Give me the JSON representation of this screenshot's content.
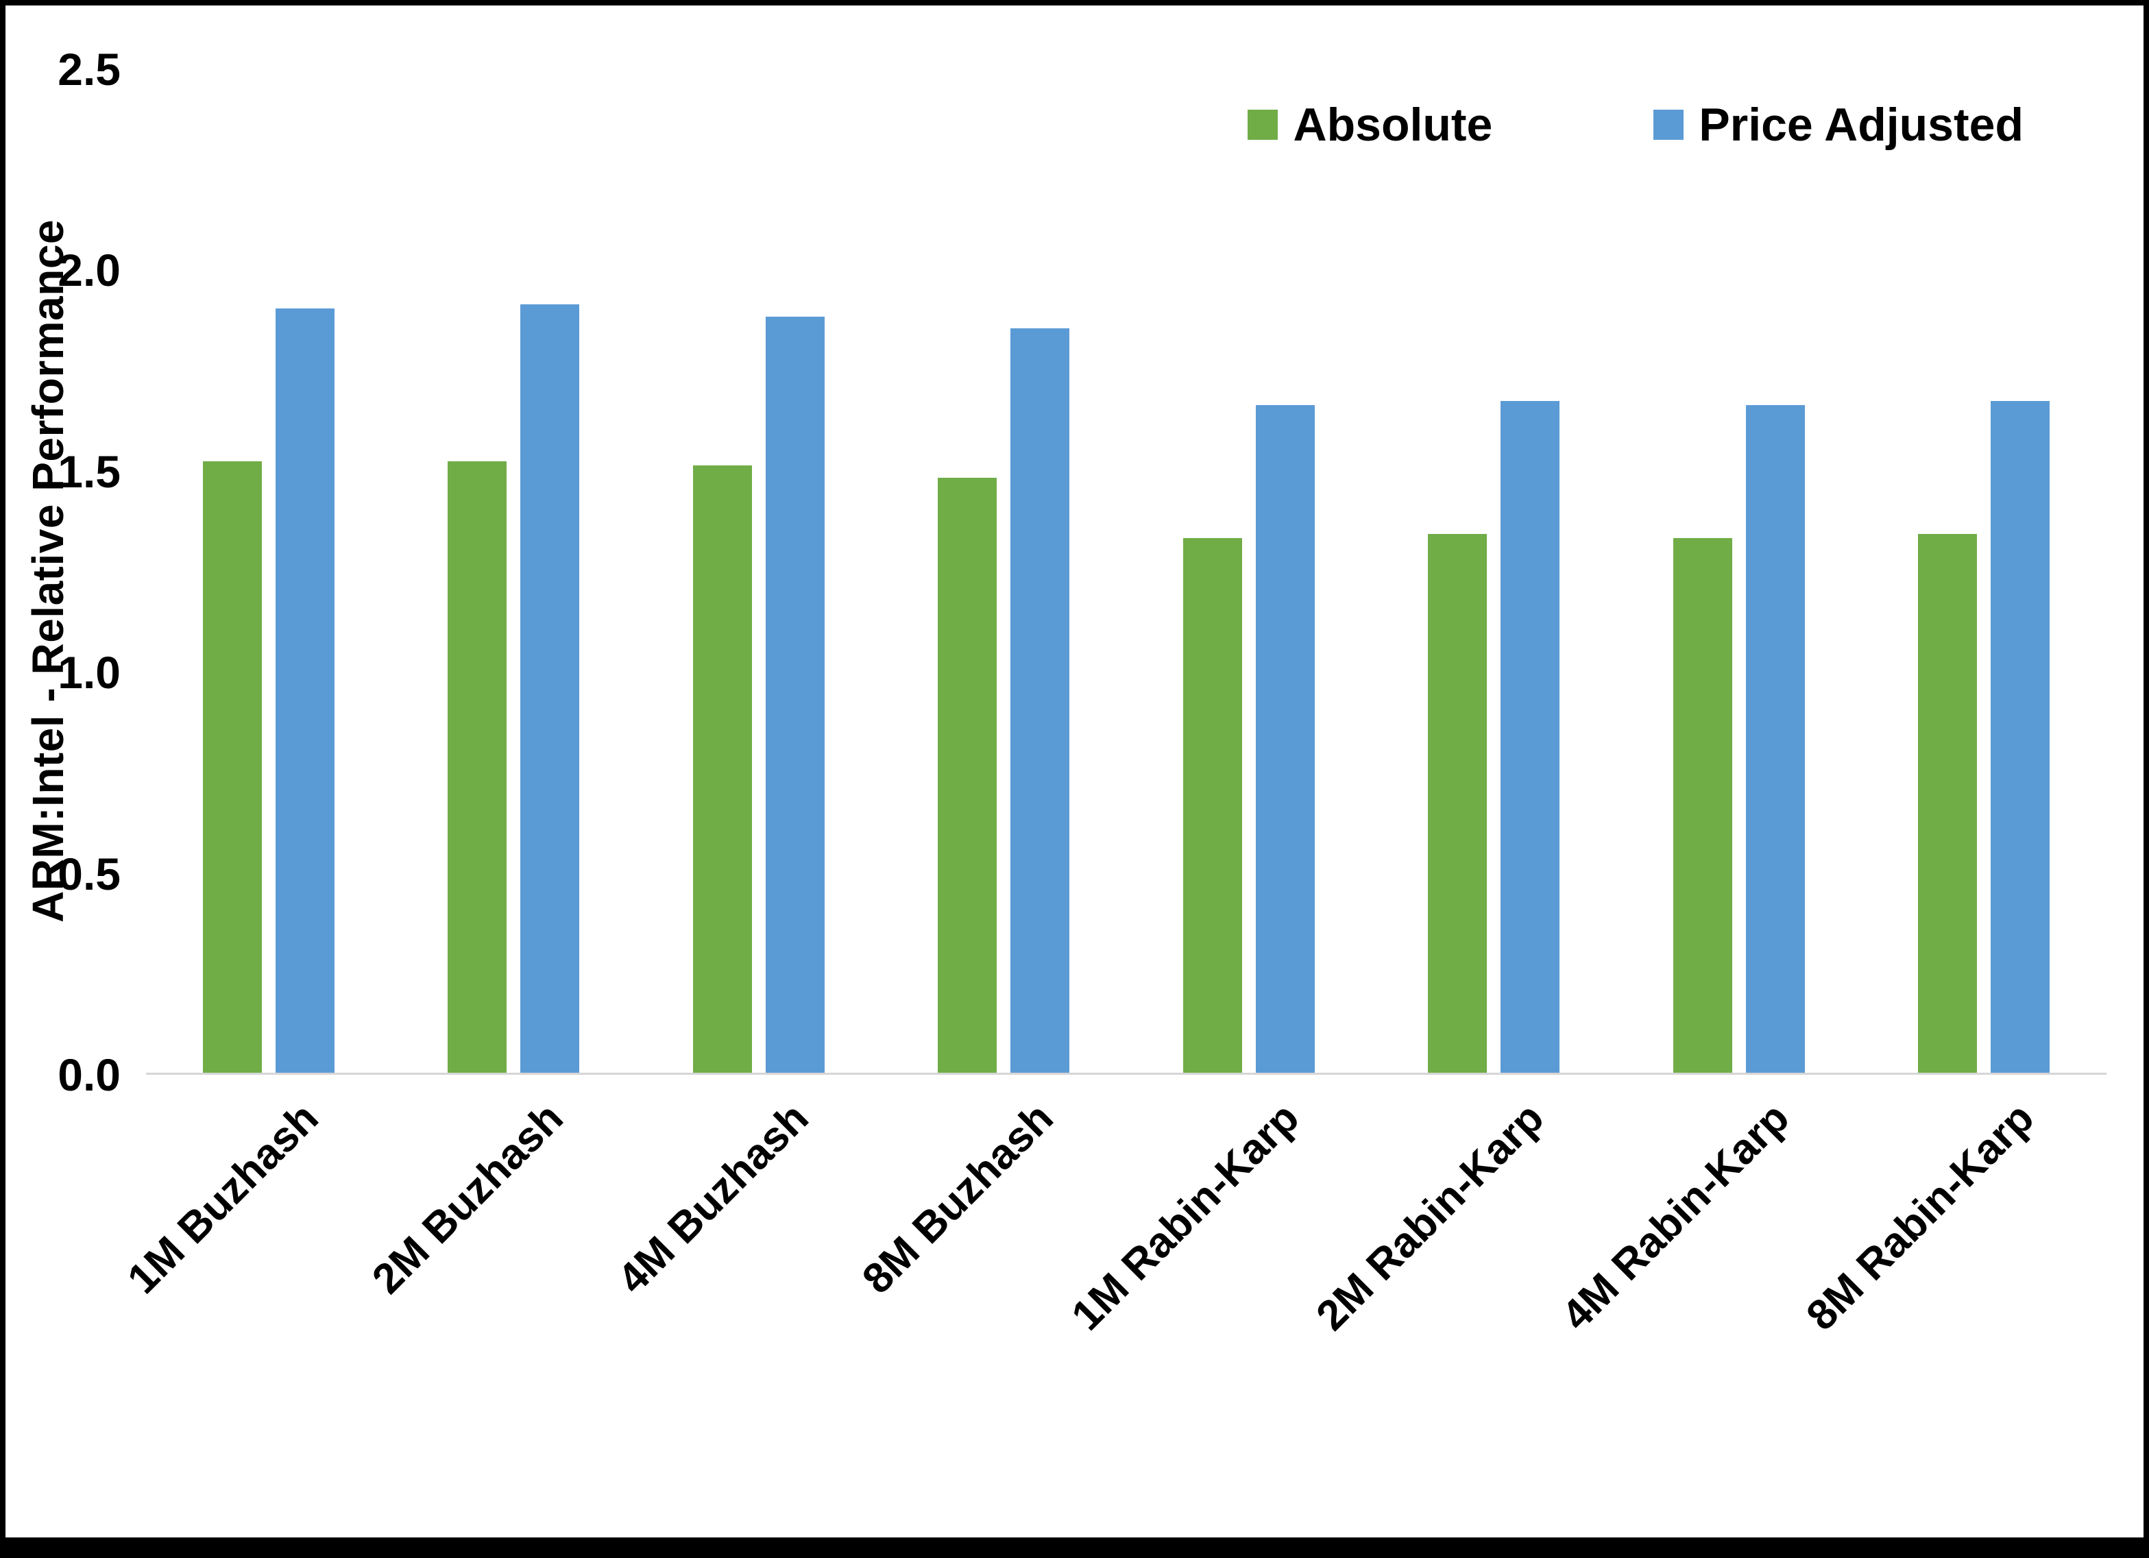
{
  "chart_data": {
    "type": "bar",
    "categories": [
      "1M Buzhash",
      "2M Buzhash",
      "4M Buzhash",
      "8M Buzhash",
      "1M Rabin-Karp",
      "2M Rabin-Karp",
      "4M Rabin-Karp",
      "8M Rabin-Karp"
    ],
    "series": [
      {
        "name": "Absolute",
        "color": "#70AD47",
        "values": [
          1.52,
          1.52,
          1.51,
          1.48,
          1.33,
          1.34,
          1.33,
          1.34
        ]
      },
      {
        "name": "Price Adjusted",
        "color": "#5B9BD5",
        "values": [
          1.9,
          1.91,
          1.88,
          1.85,
          1.66,
          1.67,
          1.66,
          1.67
        ]
      }
    ],
    "title": "",
    "xlabel": "",
    "ylabel": "ARM:Intel - Relative Performance",
    "ylim": [
      0.0,
      2.5
    ],
    "yticks": [
      "0.0",
      "0.5",
      "1.0",
      "1.5",
      "2.0",
      "2.5"
    ],
    "legend_position": "top-right",
    "grid": false,
    "axis_line_color": "#d6d6d6",
    "text_color": "#000000",
    "background_color": "#ffffff"
  }
}
